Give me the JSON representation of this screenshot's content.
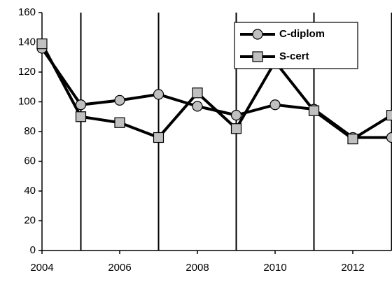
{
  "chart_data": {
    "type": "line",
    "x": [
      2004,
      2005,
      2006,
      2007,
      2008,
      2009,
      2010,
      2011,
      2012,
      2013
    ],
    "series": [
      {
        "name": "C-diplom",
        "color": "#000000",
        "marker": "circle",
        "values": [
          136,
          98,
          101,
          105,
          97,
          91,
          98,
          95,
          76,
          76
        ]
      },
      {
        "name": "S-cert",
        "color": "#000000",
        "marker": "square",
        "values": [
          139,
          90,
          86,
          76,
          106,
          82,
          127,
          94,
          75,
          91
        ]
      }
    ],
    "xlim": [
      2004,
      2013
    ],
    "xticks": [
      2004,
      2006,
      2008,
      2010,
      2012
    ],
    "xgridlines": [
      2005,
      2007,
      2009,
      2011,
      2013
    ],
    "ylim": [
      0,
      160
    ],
    "yticks": [
      0,
      20,
      40,
      60,
      80,
      100,
      120,
      140,
      160
    ],
    "legend": "upper right"
  }
}
